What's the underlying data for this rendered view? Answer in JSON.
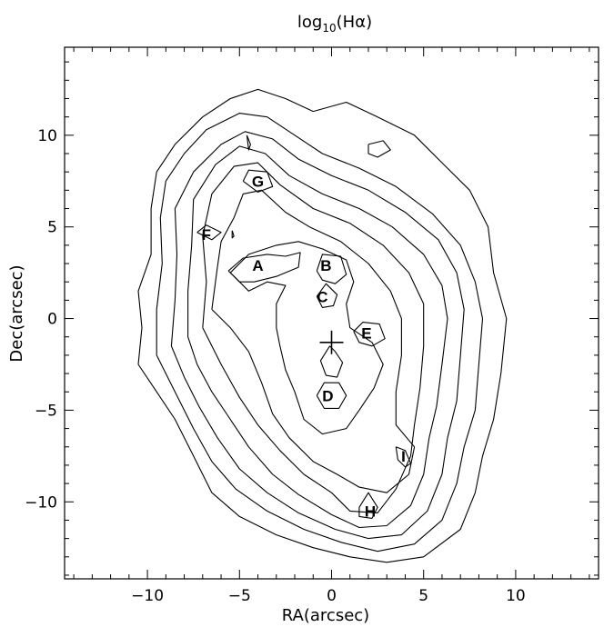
{
  "chart_data": {
    "type": "contour",
    "title": "log10(Hα)",
    "xlabel": "RA(arcsec)",
    "ylabel": "Dec(arcsec)",
    "xlim": [
      -14.5,
      14.5
    ],
    "ylim": [
      -14.2,
      14.8
    ],
    "xticks": [
      -10,
      -5,
      0,
      5,
      10
    ],
    "yticks": [
      -10,
      -5,
      0,
      5,
      10
    ],
    "xtick_labels": [
      "−10",
      "−5",
      "0",
      "5",
      "10"
    ],
    "ytick_labels": [
      "−10",
      "−5",
      "0",
      "5",
      "10"
    ],
    "grid": false,
    "center_marker": {
      "x": 0.0,
      "y": -1.3,
      "symbol": "+"
    },
    "regions": [
      {
        "label": "A",
        "x": -4.0,
        "y": 2.9
      },
      {
        "label": "B",
        "x": -0.3,
        "y": 2.9
      },
      {
        "label": "C",
        "x": -0.5,
        "y": 1.2
      },
      {
        "label": "D",
        "x": -0.2,
        "y": -4.2
      },
      {
        "label": "E",
        "x": 1.9,
        "y": -0.8
      },
      {
        "label": "F",
        "x": -6.8,
        "y": 4.6
      },
      {
        "label": "G",
        "x": -4.0,
        "y": 7.5
      },
      {
        "label": "H",
        "x": 2.1,
        "y": -10.5
      },
      {
        "label": "I",
        "x": 3.9,
        "y": -7.5
      }
    ],
    "contours": [
      {
        "level": 1,
        "points": [
          [
            -10.5,
            -2.5
          ],
          [
            -10.3,
            -0.5
          ],
          [
            -10.5,
            1.5
          ],
          [
            -9.8,
            3.5
          ],
          [
            -9.8,
            6.0
          ],
          [
            -9.5,
            8.0
          ],
          [
            -8.5,
            9.5
          ],
          [
            -7.0,
            11.0
          ],
          [
            -5.5,
            12.0
          ],
          [
            -4.0,
            12.5
          ],
          [
            -2.5,
            12.0
          ],
          [
            -1.0,
            11.3
          ],
          [
            0.8,
            11.8
          ],
          [
            2.5,
            11.0
          ],
          [
            4.5,
            10.0
          ],
          [
            6.0,
            8.5
          ],
          [
            7.5,
            7.0
          ],
          [
            8.5,
            5.0
          ],
          [
            8.8,
            2.5
          ],
          [
            9.5,
            0.0
          ],
          [
            9.2,
            -3.0
          ],
          [
            8.8,
            -5.5
          ],
          [
            8.2,
            -7.5
          ],
          [
            7.8,
            -9.5
          ],
          [
            7.0,
            -11.5
          ],
          [
            5.0,
            -13.0
          ],
          [
            3.0,
            -13.3
          ],
          [
            1.0,
            -13.0
          ],
          [
            -1.0,
            -12.5
          ],
          [
            -3.0,
            -11.8
          ],
          [
            -5.0,
            -10.8
          ],
          [
            -6.5,
            -9.5
          ],
          [
            -7.5,
            -7.5
          ],
          [
            -8.5,
            -5.5
          ],
          [
            -9.5,
            -4.0
          ],
          [
            -10.5,
            -2.5
          ]
        ]
      },
      {
        "level": 2,
        "points": [
          [
            -9.5,
            -2.0
          ],
          [
            -9.5,
            0.5
          ],
          [
            -9.2,
            3.0
          ],
          [
            -9.3,
            5.5
          ],
          [
            -9.0,
            7.5
          ],
          [
            -8.0,
            9.0
          ],
          [
            -6.8,
            10.3
          ],
          [
            -5.0,
            11.2
          ],
          [
            -3.5,
            11.0
          ],
          [
            -2.0,
            10.0
          ],
          [
            -0.5,
            9.0
          ],
          [
            1.5,
            8.2
          ],
          [
            3.5,
            7.2
          ],
          [
            5.5,
            5.7
          ],
          [
            7.0,
            4.0
          ],
          [
            7.8,
            2.0
          ],
          [
            8.2,
            0.0
          ],
          [
            8.0,
            -2.5
          ],
          [
            7.8,
            -5.0
          ],
          [
            7.2,
            -7.0
          ],
          [
            6.8,
            -9.0
          ],
          [
            6.0,
            -11.0
          ],
          [
            4.5,
            -12.3
          ],
          [
            2.5,
            -12.7
          ],
          [
            0.5,
            -12.2
          ],
          [
            -1.5,
            -11.5
          ],
          [
            -3.5,
            -10.5
          ],
          [
            -5.2,
            -9.3
          ],
          [
            -6.5,
            -7.8
          ],
          [
            -7.5,
            -6.0
          ],
          [
            -8.5,
            -4.0
          ],
          [
            -9.5,
            -2.0
          ]
        ]
      },
      {
        "level": 3,
        "points": [
          [
            -8.7,
            -1.5
          ],
          [
            -8.5,
            1.0
          ],
          [
            -8.4,
            3.5
          ],
          [
            -8.5,
            6.0
          ],
          [
            -7.5,
            8.0
          ],
          [
            -6.0,
            9.5
          ],
          [
            -4.7,
            10.2
          ],
          [
            -3.2,
            9.8
          ],
          [
            -1.8,
            8.7
          ],
          [
            0.0,
            7.8
          ],
          [
            2.0,
            7.0
          ],
          [
            4.0,
            5.8
          ],
          [
            5.8,
            4.3
          ],
          [
            6.8,
            2.5
          ],
          [
            7.2,
            0.5
          ],
          [
            7.0,
            -2.0
          ],
          [
            6.8,
            -4.5
          ],
          [
            6.3,
            -6.5
          ],
          [
            6.0,
            -8.5
          ],
          [
            5.2,
            -10.5
          ],
          [
            3.8,
            -11.8
          ],
          [
            2.0,
            -12.0
          ],
          [
            0.2,
            -11.5
          ],
          [
            -1.8,
            -10.6
          ],
          [
            -3.5,
            -9.5
          ],
          [
            -5.0,
            -8.2
          ],
          [
            -6.2,
            -6.5
          ],
          [
            -7.2,
            -4.8
          ],
          [
            -8.0,
            -3.2
          ],
          [
            -8.7,
            -1.5
          ]
        ]
      },
      {
        "level": 4,
        "points": [
          [
            -7.8,
            -1.0
          ],
          [
            -7.8,
            1.5
          ],
          [
            -7.6,
            4.0
          ],
          [
            -7.5,
            6.5
          ],
          [
            -6.3,
            8.4
          ],
          [
            -5.0,
            9.4
          ],
          [
            -3.6,
            9.0
          ],
          [
            -2.3,
            7.8
          ],
          [
            -0.5,
            6.8
          ],
          [
            1.5,
            6.0
          ],
          [
            3.3,
            5.0
          ],
          [
            5.0,
            3.5
          ],
          [
            6.0,
            1.8
          ],
          [
            6.3,
            0.0
          ],
          [
            6.0,
            -2.5
          ],
          [
            5.7,
            -4.8
          ],
          [
            5.3,
            -6.5
          ],
          [
            5.0,
            -8.5
          ],
          [
            4.3,
            -10.2
          ],
          [
            3.0,
            -11.3
          ],
          [
            1.5,
            -11.4
          ],
          [
            0.0,
            -10.7
          ],
          [
            -1.8,
            -9.6
          ],
          [
            -3.2,
            -8.5
          ],
          [
            -4.5,
            -7.0
          ],
          [
            -5.5,
            -5.5
          ],
          [
            -6.5,
            -4.0
          ],
          [
            -7.3,
            -2.5
          ],
          [
            -7.8,
            -1.0
          ]
        ]
      },
      {
        "level": 5,
        "points": [
          [
            -7.0,
            -0.5
          ],
          [
            -6.8,
            2.0
          ],
          [
            -7.0,
            4.5
          ],
          [
            -6.5,
            6.8
          ],
          [
            -5.3,
            8.3
          ],
          [
            -4.0,
            8.5
          ],
          [
            -2.8,
            7.3
          ],
          [
            -1.0,
            6.0
          ],
          [
            1.0,
            5.2
          ],
          [
            2.8,
            4.0
          ],
          [
            4.2,
            2.5
          ],
          [
            5.0,
            0.8
          ],
          [
            5.0,
            -1.5
          ],
          [
            4.8,
            -3.8
          ],
          [
            4.5,
            -5.8
          ],
          [
            4.3,
            -7.5
          ],
          [
            3.5,
            -9.3
          ],
          [
            2.5,
            -10.6
          ],
          [
            1.0,
            -10.5
          ],
          [
            0.0,
            -9.5
          ],
          [
            -1.5,
            -8.5
          ],
          [
            -2.8,
            -7.2
          ],
          [
            -4.0,
            -5.8
          ],
          [
            -5.0,
            -4.3
          ],
          [
            -6.0,
            -2.5
          ],
          [
            -7.0,
            -0.5
          ]
        ]
      },
      {
        "level": 6,
        "points": [
          [
            -6.5,
            0.5
          ],
          [
            -6.2,
            2.8
          ],
          [
            -6.0,
            4.2
          ],
          [
            -5.3,
            5.5
          ],
          [
            -4.8,
            6.8
          ],
          [
            -3.8,
            7.0
          ],
          [
            -2.5,
            5.8
          ],
          [
            -1.2,
            5.0
          ],
          [
            0.5,
            4.2
          ],
          [
            2.0,
            3.0
          ],
          [
            3.2,
            1.5
          ],
          [
            3.8,
            0.0
          ],
          [
            3.8,
            -2.0
          ],
          [
            3.5,
            -4.0
          ],
          [
            3.5,
            -5.8
          ],
          [
            4.5,
            -7.0
          ],
          [
            4.2,
            -8.5
          ],
          [
            3.0,
            -9.5
          ],
          [
            1.5,
            -9.2
          ],
          [
            0.3,
            -8.5
          ],
          [
            -1.0,
            -7.8
          ],
          [
            -2.3,
            -6.5
          ],
          [
            -3.2,
            -5.2
          ],
          [
            -3.8,
            -3.5
          ],
          [
            -4.5,
            -1.8
          ],
          [
            -5.5,
            -0.5
          ],
          [
            -6.5,
            0.5
          ]
        ]
      },
      {
        "level": 7,
        "points": [
          [
            -5.5,
            2.5
          ],
          [
            -4.5,
            3.5
          ],
          [
            -3.0,
            4.0
          ],
          [
            -1.8,
            4.2
          ],
          [
            -0.5,
            3.8
          ],
          [
            0.8,
            3.2
          ],
          [
            1.2,
            2.0
          ],
          [
            0.8,
            0.8
          ],
          [
            1.0,
            -0.5
          ],
          [
            2.2,
            -1.3
          ],
          [
            2.8,
            -2.5
          ],
          [
            2.3,
            -3.8
          ],
          [
            1.5,
            -5.0
          ],
          [
            0.8,
            -6.0
          ],
          [
            -0.5,
            -6.3
          ],
          [
            -1.5,
            -5.5
          ],
          [
            -2.0,
            -4.0
          ],
          [
            -2.5,
            -2.8
          ],
          [
            -2.8,
            -1.5
          ],
          [
            -3.0,
            -0.5
          ],
          [
            -3.0,
            0.8
          ],
          [
            -2.5,
            1.8
          ],
          [
            -3.5,
            2.0
          ],
          [
            -4.5,
            1.5
          ],
          [
            -5.5,
            2.5
          ]
        ]
      },
      {
        "level": 8,
        "points": [
          [
            -5.6,
            2.6
          ],
          [
            -4.8,
            3.3
          ],
          [
            -3.5,
            3.5
          ],
          [
            -2.5,
            3.4
          ],
          [
            -1.7,
            3.6
          ],
          [
            -1.8,
            2.8
          ],
          [
            -3.0,
            2.3
          ],
          [
            -4.2,
            2.0
          ],
          [
            -5.0,
            2.0
          ],
          [
            -5.6,
            2.6
          ]
        ]
      },
      {
        "level": 8,
        "points": [
          [
            -0.8,
            2.6
          ],
          [
            -0.5,
            3.5
          ],
          [
            0.5,
            3.4
          ],
          [
            0.8,
            2.4
          ],
          [
            0.2,
            1.9
          ],
          [
            -0.5,
            2.1
          ],
          [
            -0.8,
            2.6
          ]
        ]
      },
      {
        "level": 8,
        "points": [
          [
            -0.8,
            1.2
          ],
          [
            -0.3,
            1.9
          ],
          [
            0.3,
            1.3
          ],
          [
            0.1,
            0.7
          ],
          [
            -0.5,
            0.6
          ],
          [
            -0.8,
            1.2
          ]
        ]
      },
      {
        "level": 8,
        "points": [
          [
            -0.1,
            -1.5
          ],
          [
            0.2,
            -1.8
          ],
          [
            0.6,
            -2.4
          ],
          [
            0.3,
            -3.2
          ],
          [
            -0.3,
            -3.1
          ],
          [
            -0.6,
            -2.3
          ],
          [
            -0.1,
            -1.5
          ]
        ]
      },
      {
        "level": 8,
        "points": [
          [
            -0.8,
            -4.2
          ],
          [
            -0.4,
            -3.5
          ],
          [
            0.4,
            -3.5
          ],
          [
            0.8,
            -4.2
          ],
          [
            0.4,
            -4.9
          ],
          [
            -0.4,
            -4.9
          ],
          [
            -0.8,
            -4.2
          ]
        ]
      },
      {
        "level": 8,
        "points": [
          [
            1.2,
            -0.7
          ],
          [
            1.7,
            -0.2
          ],
          [
            2.6,
            -0.3
          ],
          [
            2.9,
            -1.1
          ],
          [
            2.2,
            -1.5
          ],
          [
            1.5,
            -1.3
          ],
          [
            1.2,
            -0.7
          ]
        ]
      },
      {
        "level": 8,
        "points": [
          [
            -7.3,
            4.7
          ],
          [
            -6.8,
            5.1
          ],
          [
            -6.0,
            4.7
          ],
          [
            -6.5,
            4.3
          ],
          [
            -7.3,
            4.7
          ]
        ]
      },
      {
        "level": 8,
        "points": [
          [
            -4.8,
            7.5
          ],
          [
            -4.5,
            8.1
          ],
          [
            -3.5,
            8.0
          ],
          [
            -3.2,
            7.2
          ],
          [
            -4.0,
            6.9
          ],
          [
            -4.8,
            7.5
          ]
        ]
      },
      {
        "level": 8,
        "points": [
          [
            1.5,
            -10.3
          ],
          [
            2.0,
            -9.5
          ],
          [
            2.5,
            -10.3
          ],
          [
            2.2,
            -10.9
          ],
          [
            1.5,
            -10.8
          ],
          [
            1.5,
            -10.3
          ]
        ]
      },
      {
        "level": 8,
        "points": [
          [
            3.5,
            -7.0
          ],
          [
            4.0,
            -7.2
          ],
          [
            4.3,
            -7.9
          ],
          [
            4.0,
            -8.1
          ],
          [
            3.6,
            -7.7
          ],
          [
            3.5,
            -7.0
          ]
        ]
      },
      {
        "level": 7,
        "points": [
          [
            2.0,
            9.5
          ],
          [
            2.8,
            9.7
          ],
          [
            3.2,
            9.2
          ],
          [
            2.5,
            8.8
          ],
          [
            2.0,
            9.0
          ],
          [
            2.0,
            9.5
          ]
        ]
      },
      {
        "level": 7,
        "points": [
          [
            -4.6,
            10.0
          ],
          [
            -4.4,
            9.5
          ],
          [
            -4.5,
            9.2
          ],
          [
            -4.6,
            10.0
          ]
        ]
      },
      {
        "level": 8,
        "points": [
          [
            -5.4,
            4.8
          ],
          [
            -5.3,
            4.5
          ],
          [
            -5.4,
            4.4
          ],
          [
            -5.4,
            4.8
          ]
        ]
      }
    ]
  }
}
